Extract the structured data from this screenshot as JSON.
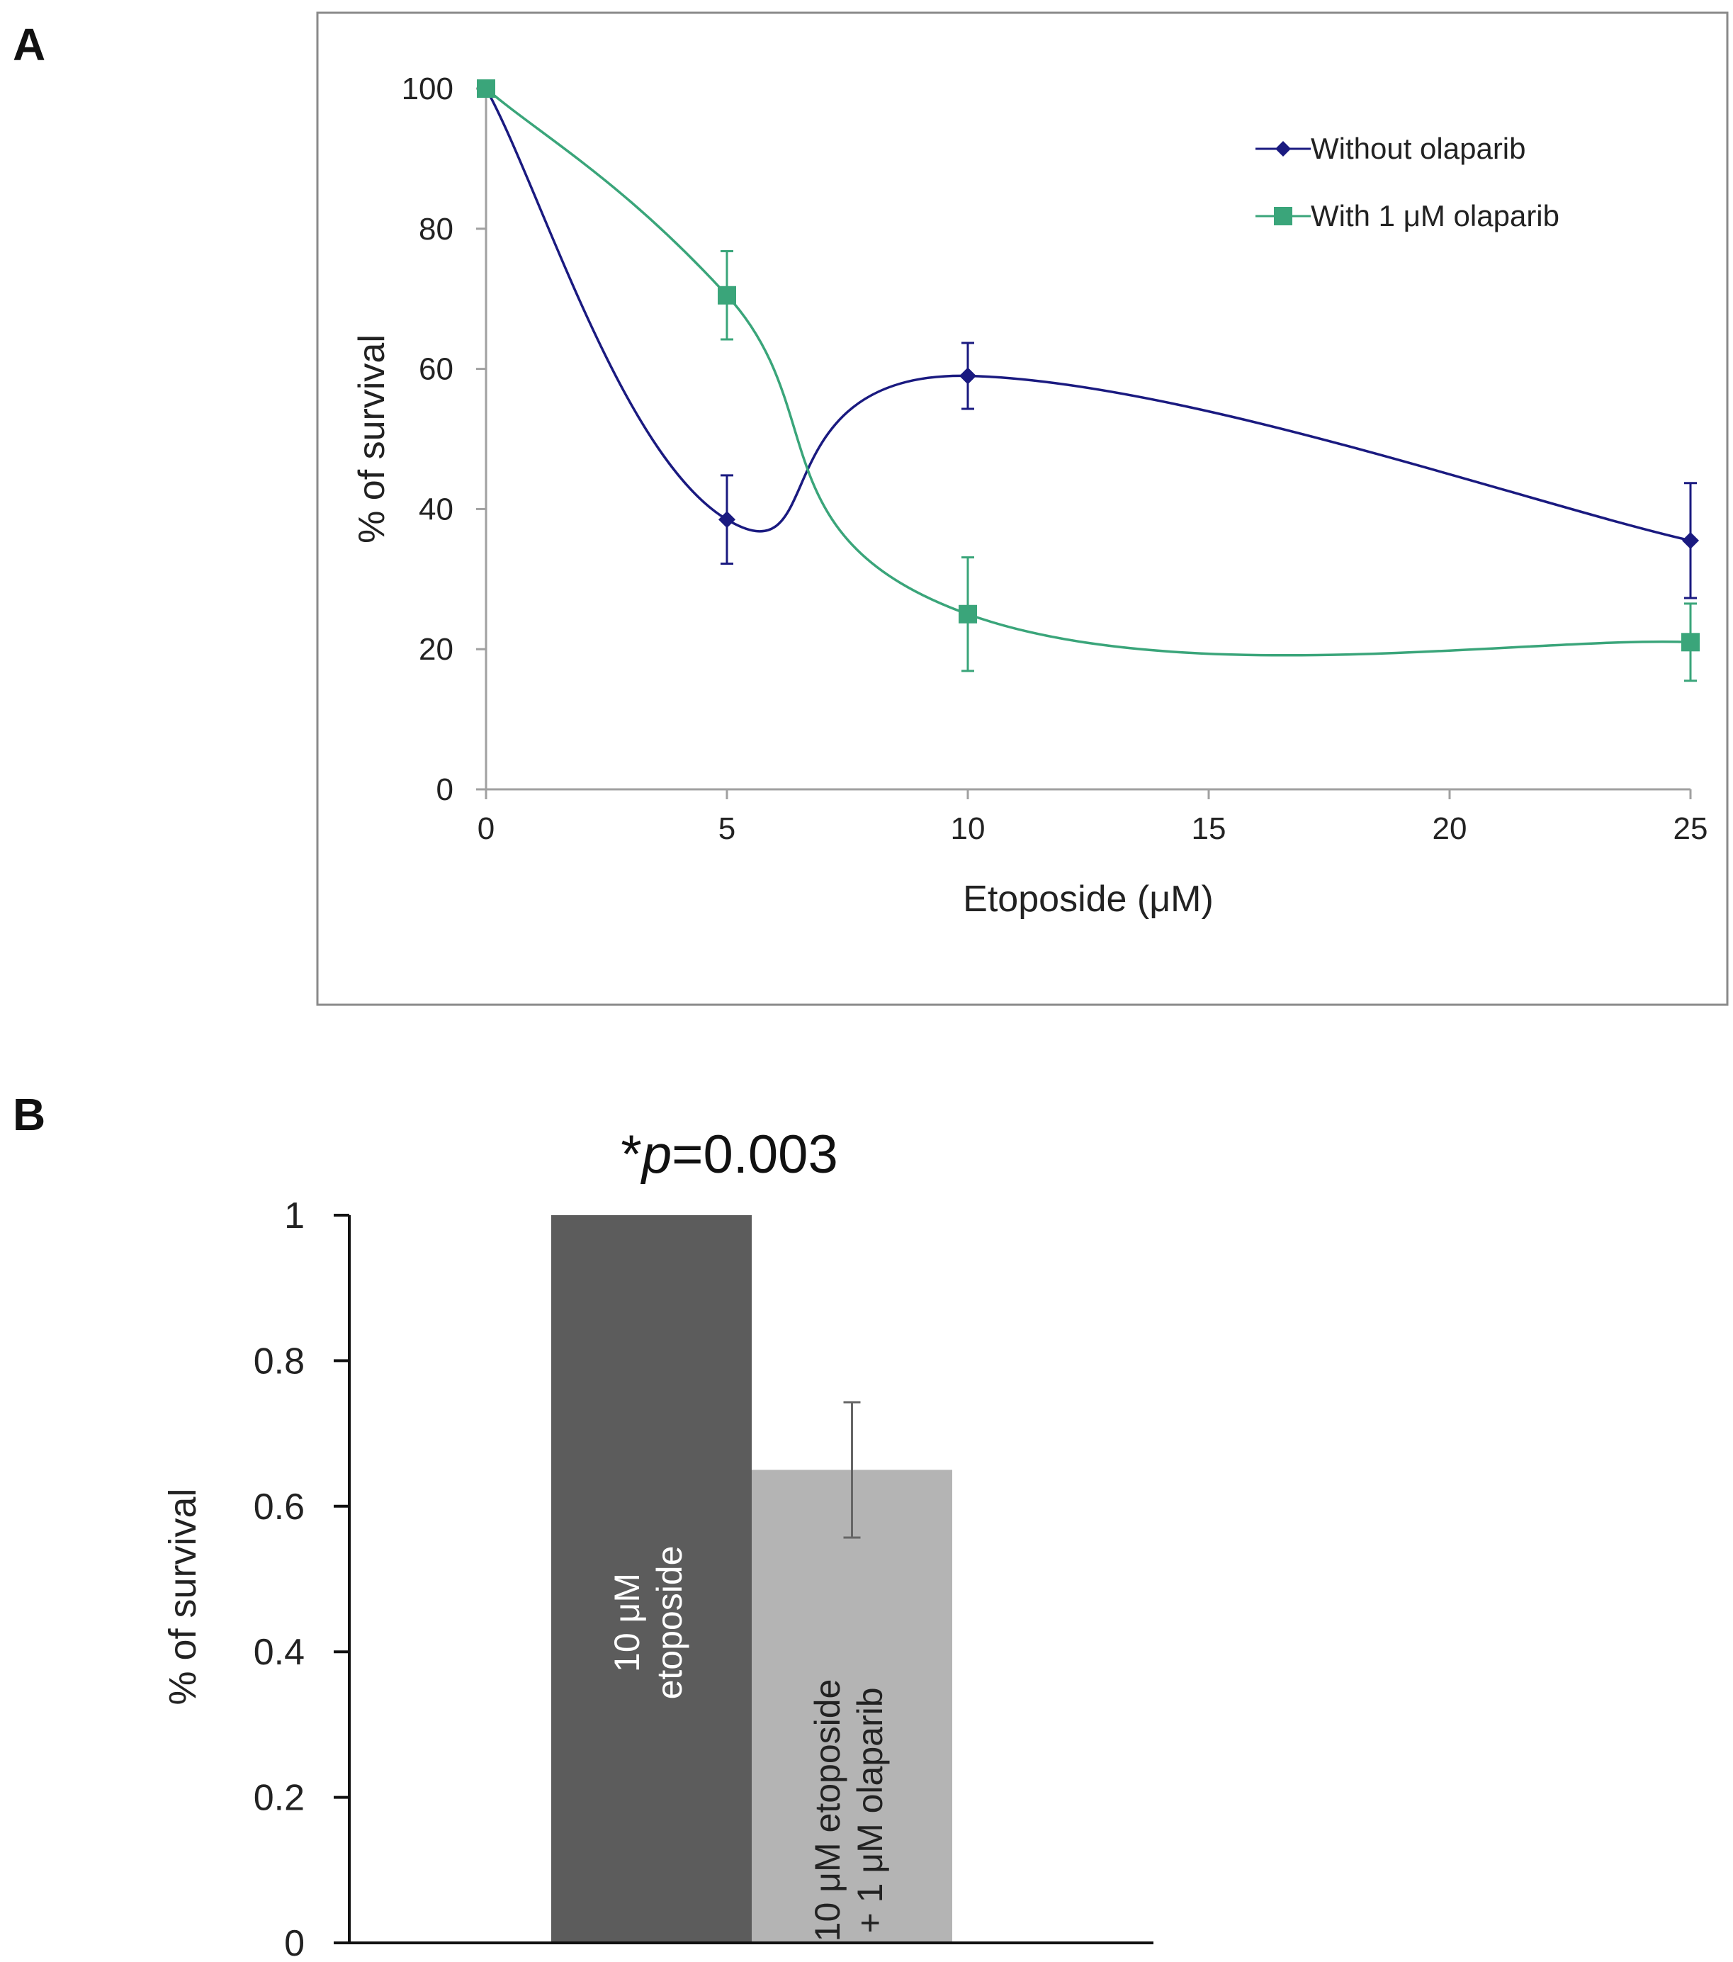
{
  "panels": {
    "a": {
      "letter": "A"
    },
    "b": {
      "letter": "B"
    }
  },
  "chart_data": [
    {
      "type": "line",
      "panel": "A",
      "title": "",
      "xlabel": "Etoposide (μM)",
      "ylabel": "% of survival",
      "xlim": [
        0,
        25
      ],
      "ylim": [
        0,
        100
      ],
      "xticks": [
        0,
        5,
        10,
        15,
        20,
        25
      ],
      "yticks": [
        0,
        20,
        40,
        60,
        80,
        100
      ],
      "grid": false,
      "legend_position": "top-right",
      "series": [
        {
          "name": "Without olaparib",
          "color": "#1a1a80",
          "marker": "diamond",
          "x": [
            0,
            5,
            10,
            25
          ],
          "y": [
            100,
            38.5,
            59,
            35.5
          ],
          "error": [
            0,
            6.3,
            4.7,
            8.2
          ]
        },
        {
          "name": "With 1 μM olaparib",
          "color": "#3aa57a",
          "marker": "square",
          "x": [
            0,
            5,
            10,
            25
          ],
          "y": [
            100,
            70.5,
            25,
            21
          ],
          "error": [
            0,
            6.3,
            8.1,
            5.5
          ]
        }
      ]
    },
    {
      "type": "bar",
      "panel": "B",
      "title": "",
      "annotation_prefix": "*",
      "annotation_italic": "p",
      "annotation_suffix": "=0.003",
      "xlabel": "",
      "ylabel": "% of survival",
      "ylim": [
        0,
        1
      ],
      "yticks": [
        "0",
        "0.2",
        "0.4",
        "0.6",
        "0.8",
        "1"
      ],
      "categories": [
        {
          "line1": "10 μM",
          "line2": "etoposide",
          "color": "#5c5c5c",
          "text_color": "#ffffff"
        },
        {
          "line1": "10 μM etoposide",
          "line2": "+ 1 μM olaparib",
          "color": "#b4b4b4",
          "text_color": "#222222"
        }
      ],
      "values": [
        1.0,
        0.65
      ],
      "errors": [
        0,
        0.093
      ]
    }
  ]
}
